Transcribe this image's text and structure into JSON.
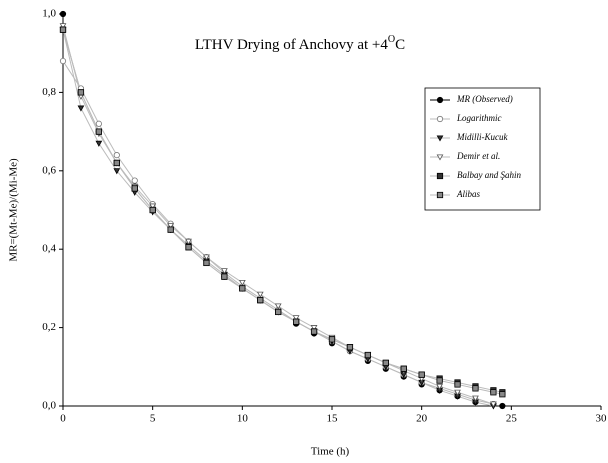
{
  "chart_data": {
    "type": "scatter",
    "title": "LTHV Drying of Anchovy at +4",
    "title_sup": "O",
    "title_end": "C",
    "xlabel": "Time (h)",
    "ylabel": "MR=(Mt-Me)/(Mi-Me)",
    "xlim": [
      0,
      30
    ],
    "xticks": [
      0,
      5,
      10,
      15,
      20,
      25,
      30
    ],
    "ylim": [
      0,
      1
    ],
    "yticks": [
      {
        "value": 0,
        "label": "0,0"
      },
      {
        "value": 0.2,
        "label": "0,2"
      },
      {
        "value": 0.4,
        "label": "0,4"
      },
      {
        "value": 0.6,
        "label": "0,6"
      },
      {
        "value": 0.8,
        "label": "0,8"
      },
      {
        "value": 1,
        "label": "1,0"
      }
    ],
    "x": [
      0,
      1,
      2,
      3,
      4,
      5,
      6,
      7,
      8,
      9,
      10,
      11,
      12,
      13,
      14,
      15,
      16,
      17,
      18,
      19,
      20,
      21,
      22,
      23,
      24,
      24.5
    ],
    "legend": "upper right",
    "series": [
      {
        "name": "MR (Observed)",
        "color": "#000000",
        "marker": "circle",
        "filled": true,
        "line": false,
        "values": [
          1.0,
          0.8,
          0.7,
          0.62,
          0.56,
          0.5,
          0.45,
          0.41,
          0.37,
          0.33,
          0.3,
          0.27,
          0.24,
          0.21,
          0.185,
          0.16,
          0.14,
          0.115,
          0.095,
          0.075,
          0.055,
          0.04,
          0.025,
          0.01,
          0.005,
          0.0
        ]
      },
      {
        "name": "Logarithmic",
        "color": "#777777",
        "marker": "circle",
        "filled": false,
        "line": true,
        "values": [
          0.88,
          0.81,
          0.72,
          0.64,
          0.575,
          0.515,
          0.465,
          0.42,
          0.38,
          0.34,
          0.305,
          0.275,
          0.245,
          0.215,
          0.19,
          0.165,
          0.14,
          0.12,
          0.1,
          0.08,
          0.06,
          0.045,
          0.03,
          0.015,
          0.005,
          null
        ]
      },
      {
        "name": "Midilli-Kucuk",
        "color": "#333333",
        "marker": "triangle",
        "filled": true,
        "line": true,
        "values": [
          0.96,
          0.76,
          0.67,
          0.6,
          0.545,
          0.495,
          0.45,
          0.41,
          0.37,
          0.335,
          0.3,
          0.27,
          0.24,
          0.215,
          0.19,
          0.165,
          0.14,
          0.12,
          0.1,
          0.08,
          0.06,
          0.04,
          0.025,
          0.01,
          0.0,
          null
        ]
      },
      {
        "name": "Demir et al.",
        "color": "#555555",
        "marker": "triangle",
        "filled": false,
        "line": true,
        "values": [
          0.97,
          0.79,
          0.695,
          0.62,
          0.56,
          0.51,
          0.46,
          0.42,
          0.38,
          0.345,
          0.315,
          0.285,
          0.255,
          0.225,
          0.2,
          0.175,
          0.15,
          0.13,
          0.11,
          0.09,
          0.07,
          0.05,
          0.035,
          0.02,
          0.005,
          null
        ]
      },
      {
        "name": "Balbay and Şahin",
        "color": "#333333",
        "marker": "square",
        "filled": true,
        "line": true,
        "values": [
          0.96,
          0.8,
          0.7,
          0.62,
          0.555,
          0.5,
          0.45,
          0.405,
          0.365,
          0.33,
          0.3,
          0.27,
          0.24,
          0.215,
          0.19,
          0.17,
          0.15,
          0.13,
          0.11,
          0.095,
          0.08,
          0.07,
          0.06,
          0.05,
          0.04,
          0.035
        ]
      },
      {
        "name": "Alibas",
        "color": "#888888",
        "marker": "square",
        "filled": true,
        "line": true,
        "values": [
          0.96,
          0.8,
          0.7,
          0.62,
          0.555,
          0.5,
          0.45,
          0.405,
          0.365,
          0.33,
          0.3,
          0.27,
          0.24,
          0.215,
          0.19,
          0.17,
          0.15,
          0.13,
          0.11,
          0.095,
          0.08,
          0.065,
          0.055,
          0.045,
          0.035,
          0.03
        ]
      }
    ]
  }
}
